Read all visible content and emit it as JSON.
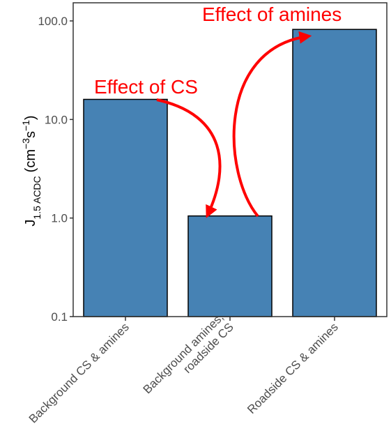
{
  "chart_data": {
    "type": "bar",
    "title": "",
    "xlabel": "",
    "ylabel": {
      "base": "J",
      "subscript": "1.5 ACDC",
      "unit_open": "(cm",
      "unit_exp1": "−3",
      "unit_mid": "s",
      "unit_exp2": "−1",
      "unit_close": ")"
    },
    "yscale": "log",
    "ylim": [
      0.1,
      100
    ],
    "yticks": [
      0.1,
      1.0,
      10.0,
      100.0
    ],
    "ytick_labels": [
      "0.1",
      "1.0",
      "10.0",
      "100.0"
    ],
    "categories": [
      [
        "Background CS & amines"
      ],
      [
        "Background amines,",
        "roadside CS"
      ],
      [
        "Roadside CS & amines"
      ]
    ],
    "values": [
      16,
      1.05,
      82
    ],
    "bar_color": "#4682b4",
    "grid": false,
    "annotations": [
      {
        "text": "Effect of CS",
        "color": "#ff0000",
        "from_category": 0,
        "to_category": 1
      },
      {
        "text": "Effect of amines",
        "color": "#ff0000",
        "from_category": 1,
        "to_category": 2
      }
    ]
  }
}
